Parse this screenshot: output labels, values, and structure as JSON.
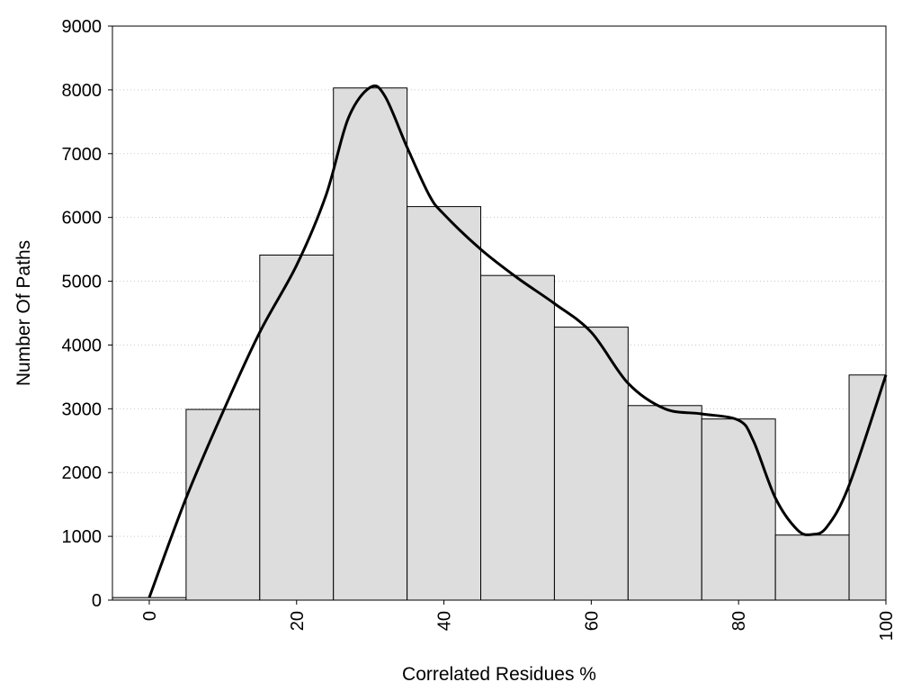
{
  "chart_data": {
    "type": "bar",
    "title": "",
    "xlabel": "Correlated Residues %",
    "ylabel": "Number Of Paths",
    "xlim": [
      -5,
      100
    ],
    "ylim": [
      0,
      9000
    ],
    "grid": "horizontal dotted",
    "bar_color": "#dddddd",
    "bar_edge_color": "#000000",
    "line_color": "#000000",
    "x_ticks": [
      0,
      20,
      40,
      60,
      80,
      100
    ],
    "y_ticks": [
      0,
      1000,
      2000,
      3000,
      4000,
      5000,
      6000,
      7000,
      8000,
      9000
    ],
    "bins": [
      {
        "x": 0,
        "value": 40
      },
      {
        "x": 10,
        "value": 2990
      },
      {
        "x": 20,
        "value": 5410
      },
      {
        "x": 30,
        "value": 8030
      },
      {
        "x": 40,
        "value": 6170
      },
      {
        "x": 50,
        "value": 5090
      },
      {
        "x": 60,
        "value": 4280
      },
      {
        "x": 70,
        "value": 3050
      },
      {
        "x": 80,
        "value": 2840
      },
      {
        "x": 90,
        "value": 1020
      },
      {
        "x": 100,
        "value": 3530
      }
    ],
    "bin_width": 10,
    "smooth_curve": {
      "x": [
        0,
        5,
        10,
        15,
        20,
        24,
        27,
        30,
        32,
        35,
        38,
        40,
        45,
        50,
        55,
        60,
        65,
        70,
        75,
        80,
        82,
        85,
        88,
        90,
        92,
        95,
        100
      ],
      "y": [
        40,
        1600,
        2950,
        4200,
        5250,
        6350,
        7550,
        8040,
        7900,
        7100,
        6350,
        6050,
        5500,
        5050,
        4650,
        4200,
        3400,
        3000,
        2920,
        2820,
        2500,
        1600,
        1100,
        1030,
        1150,
        1800,
        3530
      ]
    }
  }
}
